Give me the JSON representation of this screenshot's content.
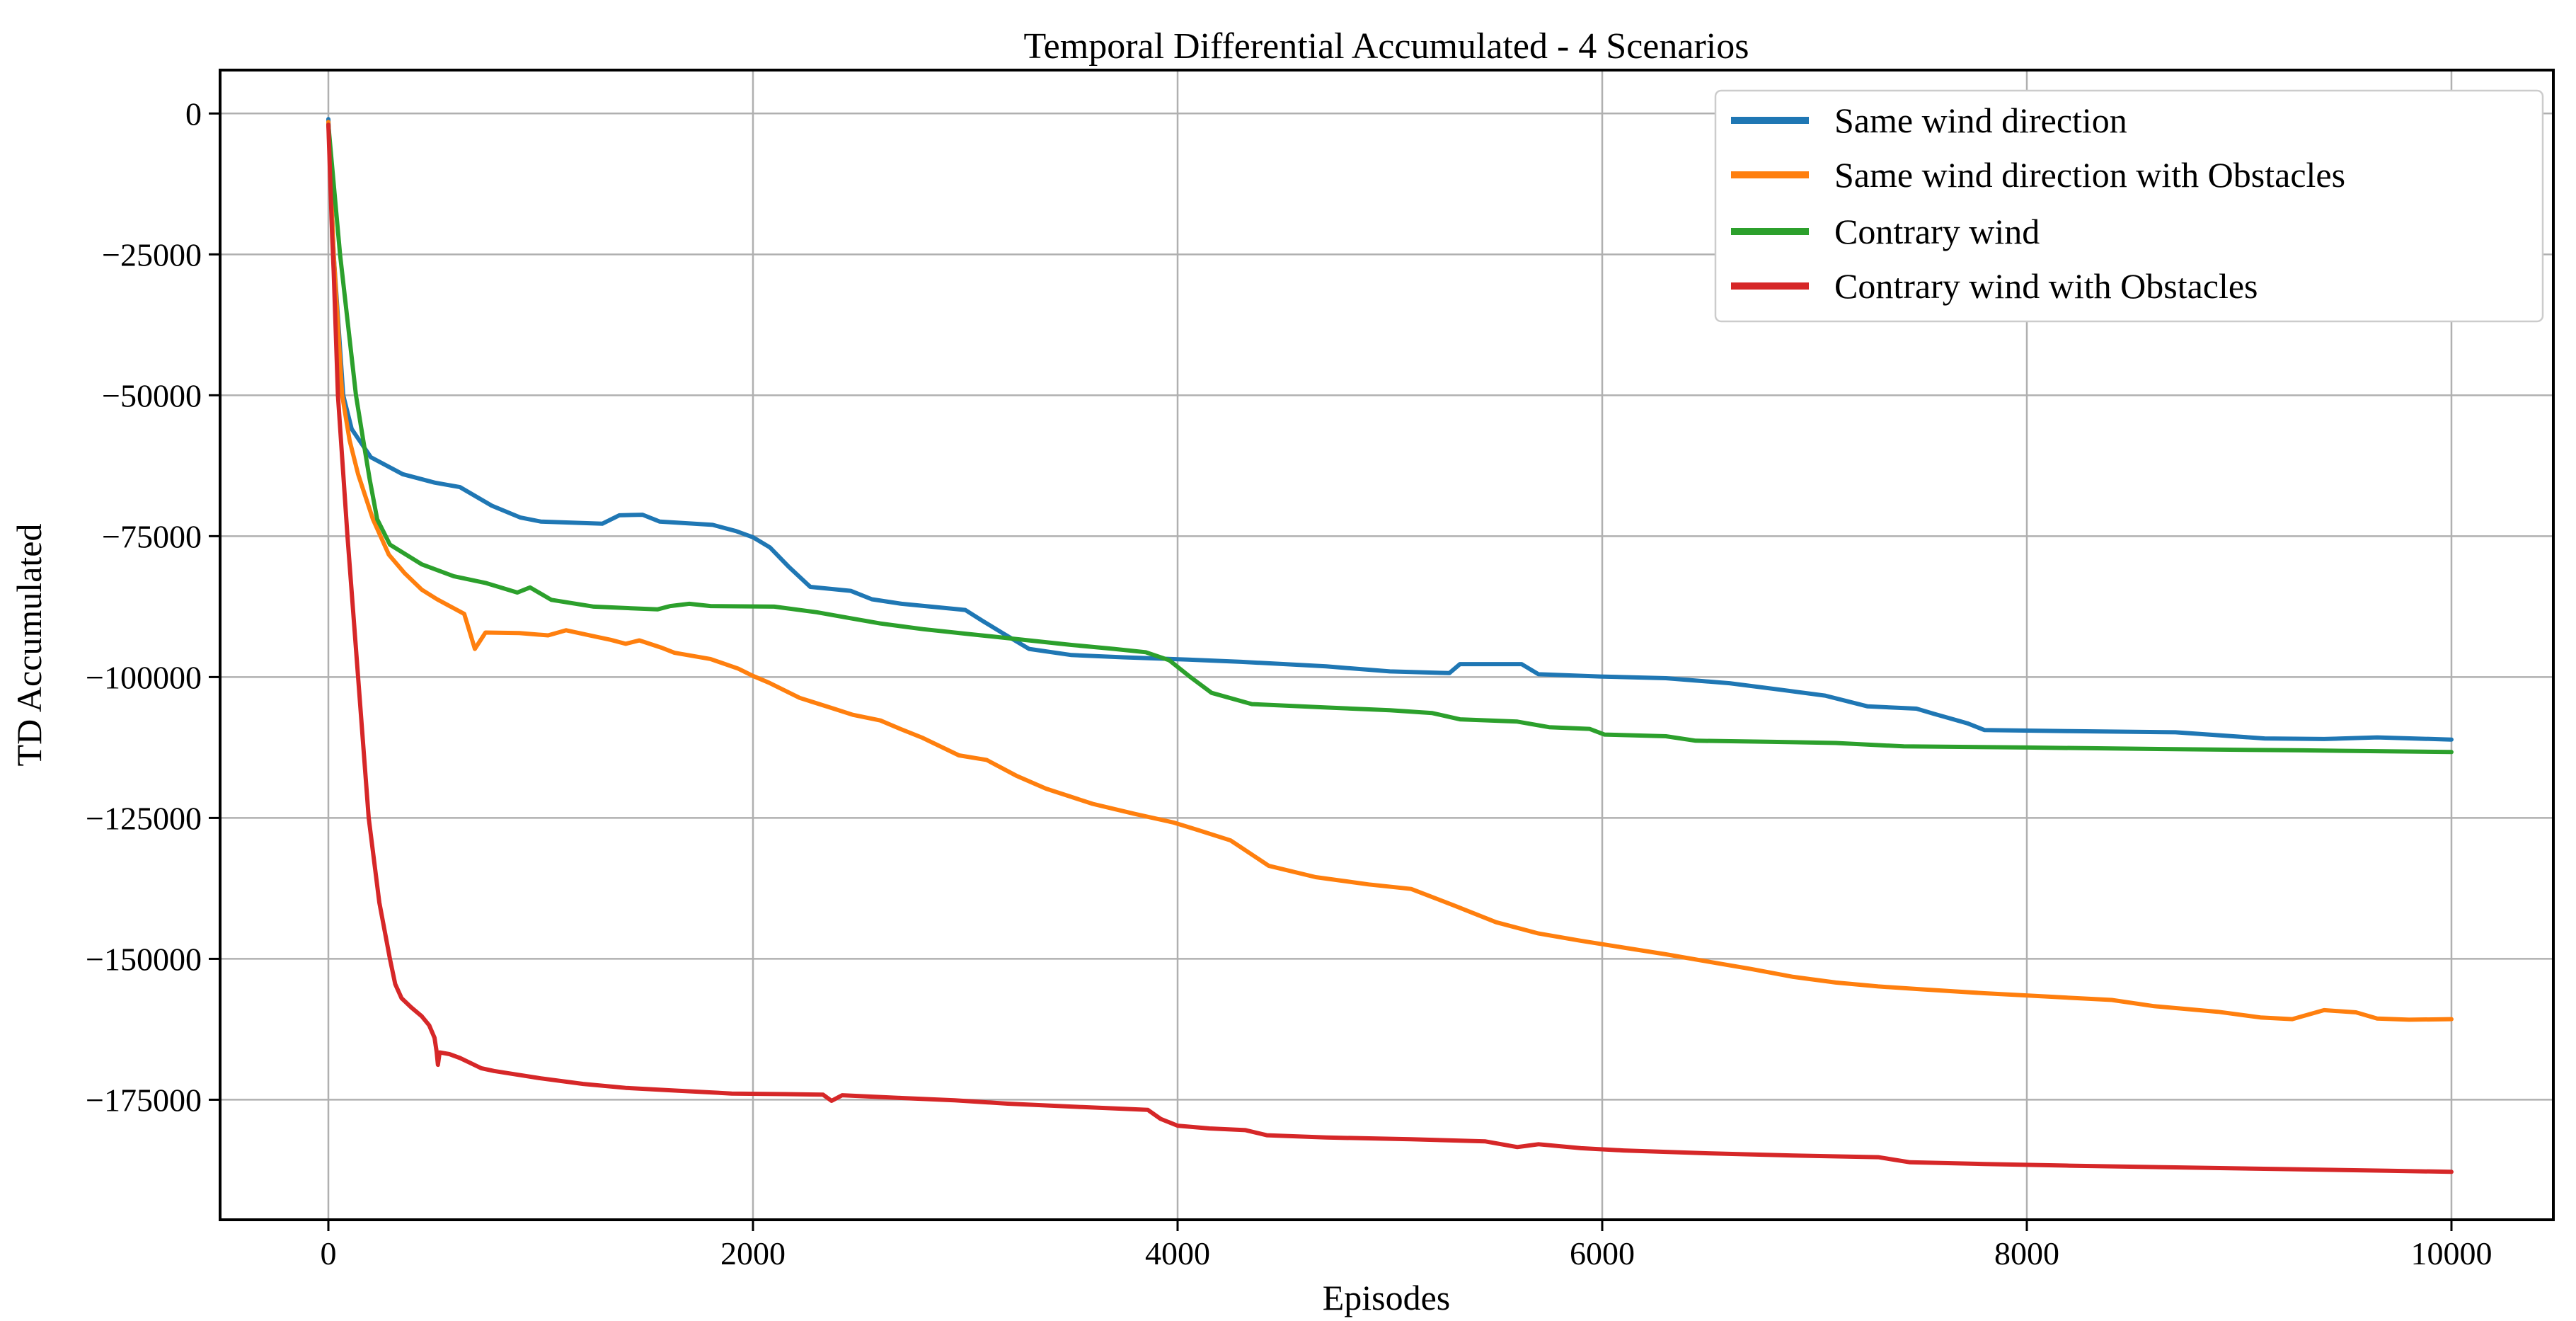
{
  "title": "Temporal Differential Accumulated - 4 Scenarios",
  "axes": {
    "xlabel": "Episodes",
    "ylabel": "TD Accumulated",
    "x_ticks": [
      {
        "value": 0,
        "label": "0"
      },
      {
        "value": 2000,
        "label": "2000"
      },
      {
        "value": 4000,
        "label": "4000"
      },
      {
        "value": 6000,
        "label": "6000"
      },
      {
        "value": 8000,
        "label": "8000"
      },
      {
        "value": 10000,
        "label": "10000"
      }
    ],
    "y_ticks": [
      {
        "value": 0,
        "label": "0"
      },
      {
        "value": -25000,
        "label": "−25000"
      },
      {
        "value": -50000,
        "label": "−50000"
      },
      {
        "value": -75000,
        "label": "−75000"
      },
      {
        "value": -100000,
        "label": "−100000"
      },
      {
        "value": -125000,
        "label": "−125000"
      },
      {
        "value": -150000,
        "label": "−150000"
      },
      {
        "value": -175000,
        "label": "−175000"
      }
    ],
    "grid": true,
    "grid_color": "#b0b0b0",
    "spine_color": "#000000",
    "background": "#ffffff"
  },
  "legend": {
    "position": "upper right",
    "border_color": "#cccccc",
    "fill_color": "#ffffff",
    "items": [
      {
        "label": "Same wind direction",
        "color": "#1f77b4"
      },
      {
        "label": "Same wind direction with Obstacles",
        "color": "#ff7f0e"
      },
      {
        "label": "Contrary wind",
        "color": "#2ca02c"
      },
      {
        "label": "Contrary wind with Obstacles",
        "color": "#d62728"
      }
    ]
  },
  "chart_data": {
    "type": "line",
    "title": "Temporal Differential Accumulated - 4 Scenarios",
    "xlabel": "Episodes",
    "ylabel": "TD Accumulated",
    "xlim": [
      -510,
      10480
    ],
    "ylim": [
      -196300,
      7700
    ],
    "grid": true,
    "legend_position": "upper right",
    "series": [
      {
        "name": "Same wind direction",
        "color": "#1f77b4",
        "points": [
          [
            0,
            -1000
          ],
          [
            25,
            -25000
          ],
          [
            70,
            -50000
          ],
          [
            110,
            -56000
          ],
          [
            200,
            -61000
          ],
          [
            350,
            -64000
          ],
          [
            500,
            -65500
          ],
          [
            620,
            -66300
          ],
          [
            770,
            -69600
          ],
          [
            905,
            -71700
          ],
          [
            1000,
            -72400
          ],
          [
            1290,
            -72800
          ],
          [
            1370,
            -71300
          ],
          [
            1480,
            -71200
          ],
          [
            1560,
            -72400
          ],
          [
            1810,
            -73000
          ],
          [
            1920,
            -74100
          ],
          [
            2000,
            -75200
          ],
          [
            2080,
            -77000
          ],
          [
            2170,
            -80500
          ],
          [
            2270,
            -84000
          ],
          [
            2460,
            -84700
          ],
          [
            2560,
            -86200
          ],
          [
            2700,
            -87000
          ],
          [
            3000,
            -88100
          ],
          [
            3080,
            -90000
          ],
          [
            3180,
            -92300
          ],
          [
            3300,
            -95000
          ],
          [
            3500,
            -96100
          ],
          [
            3745,
            -96500
          ],
          [
            4050,
            -96900
          ],
          [
            4300,
            -97300
          ],
          [
            4700,
            -98100
          ],
          [
            5000,
            -99000
          ],
          [
            5280,
            -99300
          ],
          [
            5330,
            -97700
          ],
          [
            5620,
            -97700
          ],
          [
            5700,
            -99500
          ],
          [
            5990,
            -99900
          ],
          [
            6300,
            -100200
          ],
          [
            6600,
            -101100
          ],
          [
            6850,
            -102300
          ],
          [
            7050,
            -103300
          ],
          [
            7250,
            -105200
          ],
          [
            7480,
            -105600
          ],
          [
            7560,
            -106500
          ],
          [
            7720,
            -108200
          ],
          [
            7800,
            -109400
          ],
          [
            8200,
            -109600
          ],
          [
            8700,
            -109800
          ],
          [
            9120,
            -110900
          ],
          [
            9400,
            -111000
          ],
          [
            9650,
            -110700
          ],
          [
            10000,
            -111100
          ]
        ]
      },
      {
        "name": "Same wind direction with Obstacles",
        "color": "#ff7f0e",
        "points": [
          [
            0,
            -1500
          ],
          [
            25,
            -25000
          ],
          [
            65,
            -50000
          ],
          [
            100,
            -58000
          ],
          [
            140,
            -64000
          ],
          [
            210,
            -72000
          ],
          [
            285,
            -78300
          ],
          [
            360,
            -81600
          ],
          [
            440,
            -84500
          ],
          [
            512,
            -86200
          ],
          [
            640,
            -88800
          ],
          [
            690,
            -95000
          ],
          [
            740,
            -92100
          ],
          [
            900,
            -92200
          ],
          [
            1035,
            -92600
          ],
          [
            1120,
            -91700
          ],
          [
            1255,
            -92800
          ],
          [
            1330,
            -93400
          ],
          [
            1400,
            -94100
          ],
          [
            1465,
            -93500
          ],
          [
            1570,
            -94800
          ],
          [
            1630,
            -95700
          ],
          [
            1800,
            -96800
          ],
          [
            1930,
            -98500
          ],
          [
            2000,
            -99800
          ],
          [
            2075,
            -101000
          ],
          [
            2220,
            -103700
          ],
          [
            2380,
            -105600
          ],
          [
            2470,
            -106700
          ],
          [
            2600,
            -107700
          ],
          [
            2700,
            -109300
          ],
          [
            2800,
            -110800
          ],
          [
            2970,
            -113900
          ],
          [
            3100,
            -114700
          ],
          [
            3240,
            -117500
          ],
          [
            3380,
            -119800
          ],
          [
            3600,
            -122500
          ],
          [
            3800,
            -124300
          ],
          [
            3980,
            -125800
          ],
          [
            4100,
            -127200
          ],
          [
            4250,
            -129000
          ],
          [
            4430,
            -133500
          ],
          [
            4650,
            -135500
          ],
          [
            4900,
            -136800
          ],
          [
            5100,
            -137600
          ],
          [
            5300,
            -140500
          ],
          [
            5500,
            -143500
          ],
          [
            5700,
            -145500
          ],
          [
            5900,
            -146800
          ],
          [
            6100,
            -148000
          ],
          [
            6300,
            -149200
          ],
          [
            6500,
            -150500
          ],
          [
            6700,
            -151800
          ],
          [
            6900,
            -153200
          ],
          [
            7100,
            -154200
          ],
          [
            7300,
            -154900
          ],
          [
            7500,
            -155400
          ],
          [
            7800,
            -156100
          ],
          [
            8100,
            -156700
          ],
          [
            8400,
            -157300
          ],
          [
            8600,
            -158400
          ],
          [
            8900,
            -159400
          ],
          [
            9100,
            -160400
          ],
          [
            9250,
            -160700
          ],
          [
            9400,
            -159100
          ],
          [
            9550,
            -159500
          ],
          [
            9650,
            -160600
          ],
          [
            9800,
            -160800
          ],
          [
            10000,
            -160700
          ]
        ]
      },
      {
        "name": "Contrary wind",
        "color": "#2ca02c",
        "points": [
          [
            0,
            -2000
          ],
          [
            55,
            -25000
          ],
          [
            130,
            -50000
          ],
          [
            160,
            -57000
          ],
          [
            195,
            -65000
          ],
          [
            230,
            -72000
          ],
          [
            290,
            -76500
          ],
          [
            440,
            -80000
          ],
          [
            590,
            -82100
          ],
          [
            740,
            -83300
          ],
          [
            890,
            -85000
          ],
          [
            950,
            -84100
          ],
          [
            1050,
            -86300
          ],
          [
            1250,
            -87500
          ],
          [
            1550,
            -88000
          ],
          [
            1610,
            -87400
          ],
          [
            1700,
            -87000
          ],
          [
            1800,
            -87400
          ],
          [
            2100,
            -87500
          ],
          [
            2300,
            -88500
          ],
          [
            2450,
            -89500
          ],
          [
            2600,
            -90500
          ],
          [
            2800,
            -91500
          ],
          [
            3000,
            -92300
          ],
          [
            3250,
            -93300
          ],
          [
            3500,
            -94300
          ],
          [
            3700,
            -95000
          ],
          [
            3850,
            -95600
          ],
          [
            3960,
            -97000
          ],
          [
            4060,
            -100000
          ],
          [
            4160,
            -102800
          ],
          [
            4350,
            -104800
          ],
          [
            4700,
            -105400
          ],
          [
            5000,
            -105900
          ],
          [
            5200,
            -106400
          ],
          [
            5330,
            -107500
          ],
          [
            5600,
            -107900
          ],
          [
            5750,
            -108900
          ],
          [
            5940,
            -109200
          ],
          [
            6010,
            -110200
          ],
          [
            6300,
            -110500
          ],
          [
            6440,
            -111300
          ],
          [
            6800,
            -111500
          ],
          [
            7100,
            -111700
          ],
          [
            7420,
            -112300
          ],
          [
            8000,
            -112500
          ],
          [
            8700,
            -112800
          ],
          [
            9300,
            -113000
          ],
          [
            10000,
            -113300
          ]
        ]
      },
      {
        "name": "Contrary wind with Obstacles",
        "color": "#d62728",
        "points": [
          [
            0,
            -2000
          ],
          [
            18,
            -22000
          ],
          [
            25,
            -28000
          ],
          [
            45,
            -50000
          ],
          [
            90,
            -75000
          ],
          [
            140,
            -100000
          ],
          [
            190,
            -125000
          ],
          [
            240,
            -140000
          ],
          [
            290,
            -150000
          ],
          [
            315,
            -154500
          ],
          [
            345,
            -157000
          ],
          [
            390,
            -158600
          ],
          [
            440,
            -160200
          ],
          [
            475,
            -161800
          ],
          [
            500,
            -164000
          ],
          [
            510,
            -166500
          ],
          [
            516,
            -168800
          ],
          [
            524,
            -166600
          ],
          [
            570,
            -166900
          ],
          [
            620,
            -167600
          ],
          [
            670,
            -168500
          ],
          [
            720,
            -169400
          ],
          [
            780,
            -169900
          ],
          [
            880,
            -170500
          ],
          [
            1000,
            -171200
          ],
          [
            1200,
            -172200
          ],
          [
            1400,
            -172900
          ],
          [
            1650,
            -173400
          ],
          [
            1900,
            -173900
          ],
          [
            2150,
            -174000
          ],
          [
            2330,
            -174100
          ],
          [
            2370,
            -175200
          ],
          [
            2420,
            -174200
          ],
          [
            2700,
            -174700
          ],
          [
            2950,
            -175100
          ],
          [
            3200,
            -175700
          ],
          [
            3550,
            -176300
          ],
          [
            3860,
            -176800
          ],
          [
            3920,
            -178400
          ],
          [
            4000,
            -179600
          ],
          [
            4150,
            -180100
          ],
          [
            4320,
            -180400
          ],
          [
            4420,
            -181300
          ],
          [
            4700,
            -181700
          ],
          [
            5100,
            -182000
          ],
          [
            5450,
            -182400
          ],
          [
            5600,
            -183400
          ],
          [
            5700,
            -182900
          ],
          [
            5900,
            -183600
          ],
          [
            6100,
            -184000
          ],
          [
            6500,
            -184500
          ],
          [
            6900,
            -184900
          ],
          [
            7300,
            -185200
          ],
          [
            7450,
            -186100
          ],
          [
            7800,
            -186400
          ],
          [
            8200,
            -186700
          ],
          [
            8700,
            -187000
          ],
          [
            9200,
            -187300
          ],
          [
            9700,
            -187600
          ],
          [
            10000,
            -187800
          ]
        ]
      }
    ]
  }
}
